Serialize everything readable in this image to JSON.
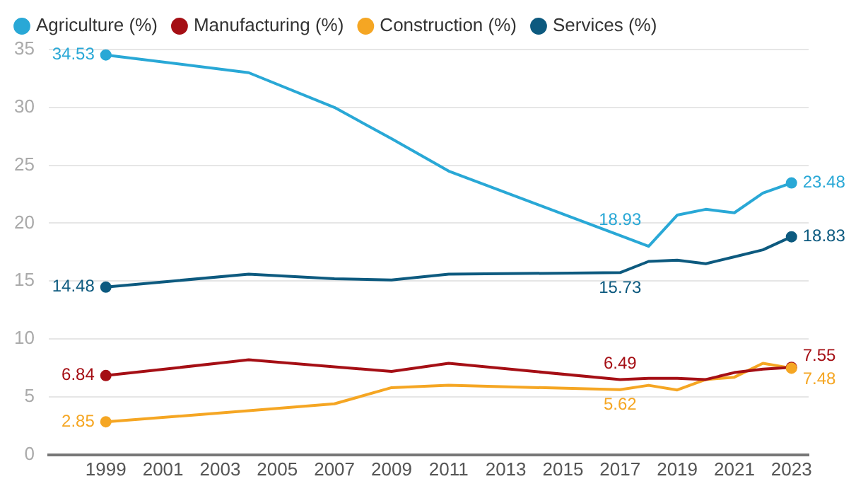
{
  "chart_data": {
    "type": "line",
    "x": [
      1999,
      2004,
      2007,
      2009,
      2011,
      2017,
      2018,
      2019,
      2020,
      2021,
      2022,
      2023
    ],
    "series": [
      {
        "name": "Agriculture (%)",
        "color": "#29a8d6",
        "values": [
          34.53,
          33.0,
          30.0,
          27.3,
          24.5,
          18.93,
          18.0,
          20.7,
          21.2,
          20.9,
          22.6,
          23.48
        ],
        "value_labels": [
          "34.53",
          null,
          null,
          null,
          null,
          "18.93",
          null,
          null,
          null,
          null,
          null,
          "23.48"
        ]
      },
      {
        "name": "Manufacturing (%)",
        "color": "#a50f15",
        "values": [
          6.84,
          8.2,
          7.6,
          7.2,
          7.9,
          6.49,
          6.6,
          6.6,
          6.5,
          7.1,
          7.4,
          7.55
        ],
        "value_labels": [
          "6.84",
          null,
          null,
          null,
          null,
          "6.49",
          null,
          null,
          null,
          null,
          null,
          "7.55"
        ]
      },
      {
        "name": "Construction (%)",
        "color": "#f5a623",
        "values": [
          2.85,
          3.8,
          4.4,
          5.8,
          6.0,
          5.62,
          6.0,
          5.6,
          6.5,
          6.7,
          7.9,
          7.48
        ],
        "value_labels": [
          "2.85",
          null,
          null,
          null,
          null,
          "5.62",
          null,
          null,
          null,
          null,
          null,
          "7.48"
        ]
      },
      {
        "name": "Services (%)",
        "color": "#0d5a7f",
        "values": [
          14.48,
          15.6,
          15.2,
          15.1,
          15.6,
          15.73,
          16.7,
          16.8,
          16.5,
          17.1,
          17.7,
          18.83
        ],
        "value_labels": [
          "14.48",
          null,
          null,
          null,
          null,
          "15.73",
          null,
          null,
          null,
          null,
          null,
          "18.83"
        ]
      }
    ],
    "xlim": [
      1997,
      2023.6
    ],
    "xticks": [
      1999,
      2001,
      2003,
      2005,
      2007,
      2009,
      2011,
      2013,
      2015,
      2017,
      2019,
      2021,
      2023
    ],
    "ylim": [
      0,
      35
    ],
    "yticks": [
      0,
      5,
      10,
      15,
      20,
      25,
      30,
      35
    ],
    "grid": "y",
    "legend": "top left",
    "line_style": "solid"
  }
}
